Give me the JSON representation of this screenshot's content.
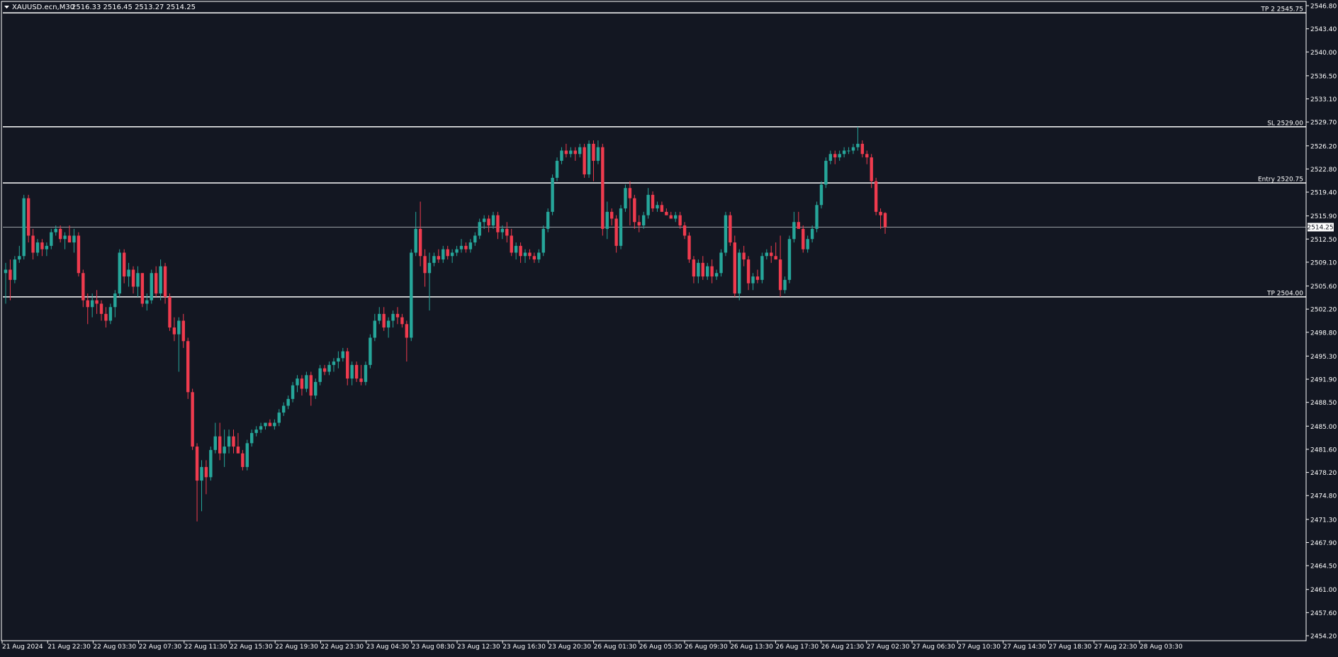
{
  "colors": {
    "background": "#131722",
    "frame": "#ffffff",
    "bull": "#26a69a",
    "bear": "#ef3b4e",
    "text": "#ffffff",
    "level_line": "#ffffff",
    "price_line": "#9aa0a6"
  },
  "header": {
    "symbol_tf": "XAUUSD.ecn,M30",
    "ohlc": "2516.33 2516.45 2513.27 2514.25"
  },
  "current_price_label": "2514.25",
  "chart_data": {
    "type": "candlestick",
    "yaxis": {
      "min": 2454.2,
      "max": 2546.8,
      "ticks": [
        "2546.80",
        "2543.40",
        "2540.00",
        "2536.50",
        "2533.10",
        "2529.70",
        "2526.20",
        "2522.80",
        "2519.40",
        "2515.90",
        "2512.50",
        "2509.10",
        "2505.60",
        "2502.20",
        "2498.80",
        "2495.30",
        "2491.90",
        "2488.50",
        "2485.00",
        "2481.60",
        "2478.20",
        "2474.80",
        "2471.30",
        "2467.90",
        "2464.50",
        "2461.00",
        "2457.60",
        "2454.20"
      ]
    },
    "xaxis": {
      "ticks": [
        "21 Aug 2024",
        "21 Aug 22:30",
        "22 Aug 03:30",
        "22 Aug 07:30",
        "22 Aug 11:30",
        "22 Aug 15:30",
        "22 Aug 19:30",
        "22 Aug 23:30",
        "23 Aug 04:30",
        "23 Aug 08:30",
        "23 Aug 12:30",
        "23 Aug 16:30",
        "23 Aug 20:30",
        "26 Aug 01:30",
        "26 Aug 05:30",
        "26 Aug 09:30",
        "26 Aug 13:30",
        "26 Aug 17:30",
        "26 Aug 21:30",
        "27 Aug 02:30",
        "27 Aug 06:30",
        "27 Aug 10:30",
        "27 Aug 14:30",
        "27 Aug 18:30",
        "27 Aug 22:30",
        "28 Aug 03:30"
      ]
    },
    "levels": [
      {
        "label": "TP 2 2545.75",
        "price": 2545.75
      },
      {
        "label": "SL 2529.00",
        "price": 2529.0
      },
      {
        "label": "Entry 2520.75",
        "price": 2520.75
      },
      {
        "label": "TP 2504.00",
        "price": 2504.0
      }
    ],
    "current_price": 2514.25,
    "candles": [
      [
        2507.5,
        2509.0,
        2503.0,
        2508.0
      ],
      [
        2508.0,
        2509.5,
        2503.5,
        2506.5
      ],
      [
        2506.5,
        2510.0,
        2506.0,
        2509.5
      ],
      [
        2509.5,
        2511.5,
        2509.0,
        2510.0
      ],
      [
        2510.0,
        2519.0,
        2509.5,
        2518.5
      ],
      [
        2518.5,
        2519.0,
        2512.0,
        2513.0
      ],
      [
        2513.0,
        2514.0,
        2509.5,
        2510.5
      ],
      [
        2510.5,
        2512.5,
        2510.0,
        2512.0
      ],
      [
        2512.0,
        2512.5,
        2510.0,
        2511.0
      ],
      [
        2511.0,
        2512.0,
        2510.0,
        2511.5
      ],
      [
        2511.5,
        2514.0,
        2511.0,
        2513.5
      ],
      [
        2513.5,
        2514.5,
        2513.0,
        2514.0
      ],
      [
        2514.0,
        2514.5,
        2512.0,
        2512.5
      ],
      [
        2512.5,
        2513.5,
        2511.0,
        2513.0
      ],
      [
        2513.0,
        2514.5,
        2512.5,
        2512.0
      ],
      [
        2512.0,
        2514.0,
        2510.5,
        2513.0
      ],
      [
        2513.0,
        2513.5,
        2507.0,
        2507.5
      ],
      [
        2507.5,
        2508.0,
        2502.5,
        2503.5
      ],
      [
        2503.5,
        2504.5,
        2500.0,
        2502.5
      ],
      [
        2502.5,
        2504.5,
        2501.0,
        2503.5
      ],
      [
        2503.5,
        2505.0,
        2501.5,
        2503.0
      ],
      [
        2503.0,
        2503.5,
        2500.5,
        2501.5
      ],
      [
        2501.5,
        2502.5,
        2499.5,
        2500.5
      ],
      [
        2500.5,
        2503.0,
        2500.0,
        2502.5
      ],
      [
        2502.5,
        2505.0,
        2501.0,
        2504.5
      ],
      [
        2504.5,
        2511.0,
        2504.0,
        2510.5
      ],
      [
        2510.5,
        2511.0,
        2506.0,
        2507.0
      ],
      [
        2507.0,
        2509.0,
        2505.5,
        2508.0
      ],
      [
        2508.0,
        2508.5,
        2504.5,
        2505.5
      ],
      [
        2505.5,
        2508.5,
        2504.0,
        2507.5
      ],
      [
        2507.5,
        2507.5,
        2502.5,
        2503.0
      ],
      [
        2503.0,
        2504.5,
        2502.0,
        2503.5
      ],
      [
        2503.5,
        2508.0,
        2503.0,
        2507.5
      ],
      [
        2507.5,
        2508.5,
        2504.0,
        2504.5
      ],
      [
        2504.5,
        2509.5,
        2503.5,
        2508.5
      ],
      [
        2508.5,
        2509.0,
        2503.0,
        2504.0
      ],
      [
        2504.0,
        2504.5,
        2499.0,
        2499.5
      ],
      [
        2499.5,
        2501.0,
        2497.5,
        2498.5
      ],
      [
        2498.5,
        2501.0,
        2493.0,
        2500.5
      ],
      [
        2500.5,
        2501.5,
        2496.5,
        2497.5
      ],
      [
        2497.5,
        2498.0,
        2489.0,
        2490.0
      ],
      [
        2490.0,
        2490.5,
        2481.5,
        2482.0
      ],
      [
        2482.0,
        2482.5,
        2471.0,
        2477.0
      ],
      [
        2477.0,
        2480.0,
        2472.5,
        2479.0
      ],
      [
        2479.0,
        2480.0,
        2475.0,
        2477.5
      ],
      [
        2477.5,
        2482.0,
        2477.0,
        2481.5
      ],
      [
        2481.5,
        2485.5,
        2481.0,
        2483.5
      ],
      [
        2483.5,
        2485.5,
        2480.0,
        2481.0
      ],
      [
        2481.0,
        2484.5,
        2479.0,
        2482.0
      ],
      [
        2482.0,
        2484.5,
        2481.0,
        2483.5
      ],
      [
        2483.5,
        2484.5,
        2481.0,
        2482.0
      ],
      [
        2482.0,
        2484.0,
        2481.5,
        2481.0
      ],
      [
        2481.0,
        2481.5,
        2478.5,
        2479.0
      ],
      [
        2479.0,
        2483.0,
        2478.5,
        2482.5
      ],
      [
        2482.5,
        2484.5,
        2482.0,
        2484.0
      ],
      [
        2484.0,
        2485.0,
        2483.5,
        2484.5
      ],
      [
        2484.5,
        2485.5,
        2484.0,
        2485.0
      ],
      [
        2485.0,
        2485.5,
        2484.5,
        2485.5
      ],
      [
        2485.5,
        2486.0,
        2485.0,
        2485.0
      ],
      [
        2485.0,
        2486.0,
        2484.5,
        2485.5
      ],
      [
        2485.5,
        2487.5,
        2485.0,
        2487.0
      ],
      [
        2487.0,
        2488.5,
        2486.5,
        2488.0
      ],
      [
        2488.0,
        2489.5,
        2487.5,
        2489.0
      ],
      [
        2489.0,
        2491.5,
        2488.5,
        2491.0
      ],
      [
        2491.0,
        2492.5,
        2490.0,
        2492.0
      ],
      [
        2492.0,
        2492.5,
        2489.5,
        2490.5
      ],
      [
        2490.5,
        2493.0,
        2490.0,
        2492.5
      ],
      [
        2492.5,
        2493.0,
        2488.0,
        2489.5
      ],
      [
        2489.5,
        2492.0,
        2489.0,
        2491.5
      ],
      [
        2491.5,
        2494.0,
        2491.0,
        2493.5
      ],
      [
        2493.5,
        2494.0,
        2492.5,
        2493.0
      ],
      [
        2493.0,
        2494.5,
        2492.5,
        2494.0
      ],
      [
        2494.0,
        2495.0,
        2493.0,
        2494.5
      ],
      [
        2494.5,
        2496.0,
        2493.5,
        2495.0
      ],
      [
        2495.0,
        2496.5,
        2494.5,
        2496.0
      ],
      [
        2496.0,
        2496.5,
        2491.0,
        2492.0
      ],
      [
        2492.0,
        2494.5,
        2491.0,
        2494.0
      ],
      [
        2494.0,
        2494.5,
        2491.5,
        2492.0
      ],
      [
        2492.0,
        2494.0,
        2491.0,
        2491.5
      ],
      [
        2491.5,
        2494.5,
        2491.0,
        2494.0
      ],
      [
        2494.0,
        2498.5,
        2493.5,
        2498.0
      ],
      [
        2498.0,
        2501.5,
        2497.5,
        2500.5
      ],
      [
        2500.5,
        2502.5,
        2500.0,
        2501.5
      ],
      [
        2501.5,
        2502.5,
        2499.0,
        2499.5
      ],
      [
        2499.5,
        2501.0,
        2498.0,
        2500.5
      ],
      [
        2500.5,
        2502.0,
        2499.5,
        2501.5
      ],
      [
        2501.5,
        2502.5,
        2500.0,
        2501.0
      ],
      [
        2501.0,
        2501.5,
        2499.5,
        2500.0
      ],
      [
        2500.0,
        2500.5,
        2494.5,
        2498.0
      ],
      [
        2498.0,
        2511.0,
        2497.5,
        2510.5
      ],
      [
        2510.5,
        2516.5,
        2510.0,
        2514.0
      ],
      [
        2514.0,
        2518.0,
        2508.5,
        2510.0
      ],
      [
        2510.0,
        2511.0,
        2505.5,
        2507.5
      ],
      [
        2507.5,
        2510.5,
        2502.0,
        2509.0
      ],
      [
        2509.0,
        2510.5,
        2508.5,
        2510.0
      ],
      [
        2510.0,
        2511.0,
        2509.0,
        2509.5
      ],
      [
        2509.5,
        2511.5,
        2509.0,
        2511.0
      ],
      [
        2511.0,
        2511.5,
        2509.5,
        2510.0
      ],
      [
        2510.0,
        2511.0,
        2509.0,
        2510.5
      ],
      [
        2510.5,
        2511.5,
        2510.0,
        2511.0
      ],
      [
        2511.0,
        2512.5,
        2510.5,
        2511.5
      ],
      [
        2511.5,
        2512.0,
        2510.5,
        2511.0
      ],
      [
        2511.0,
        2512.5,
        2510.5,
        2512.0
      ],
      [
        2512.0,
        2513.5,
        2511.5,
        2513.0
      ],
      [
        2513.0,
        2515.5,
        2512.5,
        2515.0
      ],
      [
        2515.0,
        2516.0,
        2514.0,
        2515.5
      ],
      [
        2515.5,
        2516.0,
        2513.5,
        2514.5
      ],
      [
        2514.5,
        2516.5,
        2514.0,
        2516.0
      ],
      [
        2516.0,
        2516.5,
        2512.5,
        2513.5
      ],
      [
        2513.5,
        2514.5,
        2512.5,
        2514.0
      ],
      [
        2514.0,
        2515.0,
        2512.0,
        2513.0
      ],
      [
        2513.0,
        2514.0,
        2510.0,
        2510.5
      ],
      [
        2510.5,
        2512.0,
        2509.5,
        2511.5
      ],
      [
        2511.5,
        2512.0,
        2509.0,
        2510.0
      ],
      [
        2510.0,
        2511.0,
        2509.0,
        2510.5
      ],
      [
        2510.5,
        2511.0,
        2509.5,
        2510.0
      ],
      [
        2510.0,
        2510.5,
        2509.0,
        2509.5
      ],
      [
        2509.5,
        2511.0,
        2509.0,
        2510.5
      ],
      [
        2510.5,
        2514.5,
        2510.0,
        2514.0
      ],
      [
        2514.0,
        2517.0,
        2513.5,
        2516.5
      ],
      [
        2516.5,
        2522.0,
        2516.0,
        2521.5
      ],
      [
        2521.5,
        2524.5,
        2521.0,
        2524.0
      ],
      [
        2524.0,
        2526.0,
        2523.5,
        2525.5
      ],
      [
        2525.5,
        2526.5,
        2524.5,
        2525.0
      ],
      [
        2525.0,
        2526.0,
        2524.5,
        2525.5
      ],
      [
        2525.5,
        2526.0,
        2524.0,
        2525.0
      ],
      [
        2525.0,
        2526.5,
        2524.5,
        2526.0
      ],
      [
        2526.0,
        2526.5,
        2521.5,
        2522.0
      ],
      [
        2522.0,
        2527.0,
        2521.5,
        2526.5
      ],
      [
        2526.5,
        2527.0,
        2521.0,
        2524.0
      ],
      [
        2524.0,
        2527.0,
        2523.5,
        2526.0
      ],
      [
        2526.0,
        2526.5,
        2513.0,
        2514.0
      ],
      [
        2514.0,
        2518.0,
        2512.5,
        2516.5
      ],
      [
        2516.5,
        2517.0,
        2514.5,
        2515.5
      ],
      [
        2515.5,
        2516.0,
        2510.5,
        2511.5
      ],
      [
        2511.5,
        2517.5,
        2511.0,
        2517.0
      ],
      [
        2517.0,
        2520.5,
        2516.5,
        2520.0
      ],
      [
        2520.0,
        2521.0,
        2514.5,
        2518.5
      ],
      [
        2518.5,
        2519.0,
        2514.0,
        2515.0
      ],
      [
        2515.0,
        2516.0,
        2513.5,
        2514.5
      ],
      [
        2514.5,
        2516.5,
        2514.0,
        2516.0
      ],
      [
        2516.0,
        2520.0,
        2515.5,
        2519.0
      ],
      [
        2519.0,
        2519.5,
        2516.5,
        2517.0
      ],
      [
        2517.0,
        2518.0,
        2516.5,
        2517.5
      ],
      [
        2517.5,
        2518.0,
        2516.5,
        2516.5
      ],
      [
        2516.5,
        2517.0,
        2516.0,
        2516.0
      ],
      [
        2516.0,
        2516.5,
        2515.5,
        2515.5
      ],
      [
        2515.5,
        2516.5,
        2515.0,
        2516.0
      ],
      [
        2516.0,
        2516.5,
        2514.0,
        2514.5
      ],
      [
        2514.5,
        2515.0,
        2512.5,
        2513.0
      ],
      [
        2513.0,
        2513.5,
        2509.0,
        2509.5
      ],
      [
        2509.5,
        2510.0,
        2506.0,
        2507.0
      ],
      [
        2507.0,
        2509.5,
        2506.0,
        2509.0
      ],
      [
        2509.0,
        2510.0,
        2506.5,
        2507.0
      ],
      [
        2507.0,
        2509.0,
        2506.5,
        2508.5
      ],
      [
        2508.5,
        2509.5,
        2506.0,
        2507.0
      ],
      [
        2507.0,
        2508.0,
        2506.5,
        2507.5
      ],
      [
        2507.5,
        2511.0,
        2507.0,
        2510.5
      ],
      [
        2510.5,
        2516.5,
        2510.0,
        2516.0
      ],
      [
        2516.0,
        2516.5,
        2511.5,
        2512.0
      ],
      [
        2512.0,
        2513.0,
        2504.0,
        2504.5
      ],
      [
        2504.5,
        2511.0,
        2503.5,
        2510.5
      ],
      [
        2510.5,
        2511.5,
        2508.5,
        2509.5
      ],
      [
        2509.5,
        2510.0,
        2505.0,
        2506.0
      ],
      [
        2506.0,
        2507.5,
        2505.0,
        2507.0
      ],
      [
        2507.0,
        2508.0,
        2506.0,
        2506.5
      ],
      [
        2506.5,
        2510.5,
        2506.0,
        2510.0
      ],
      [
        2510.0,
        2511.0,
        2509.5,
        2510.5
      ],
      [
        2510.5,
        2511.5,
        2509.0,
        2510.0
      ],
      [
        2510.0,
        2512.0,
        2509.5,
        2509.5
      ],
      [
        2509.5,
        2513.0,
        2504.0,
        2505.0
      ],
      [
        2505.0,
        2507.0,
        2504.5,
        2506.5
      ],
      [
        2506.5,
        2513.0,
        2506.0,
        2512.5
      ],
      [
        2512.5,
        2516.5,
        2512.0,
        2515.0
      ],
      [
        2515.0,
        2516.5,
        2514.5,
        2514.0
      ],
      [
        2514.0,
        2514.5,
        2510.5,
        2511.0
      ],
      [
        2511.0,
        2513.0,
        2510.5,
        2512.5
      ],
      [
        2512.5,
        2514.5,
        2512.0,
        2514.0
      ],
      [
        2514.0,
        2518.0,
        2513.5,
        2517.5
      ],
      [
        2517.5,
        2521.0,
        2517.0,
        2520.5
      ],
      [
        2520.5,
        2524.5,
        2520.0,
        2524.0
      ],
      [
        2524.0,
        2525.5,
        2523.5,
        2525.0
      ],
      [
        2525.0,
        2525.5,
        2523.5,
        2524.5
      ],
      [
        2524.5,
        2525.5,
        2524.0,
        2525.0
      ],
      [
        2525.0,
        2526.0,
        2524.5,
        2525.5
      ],
      [
        2525.5,
        2526.0,
        2525.0,
        2525.5
      ],
      [
        2525.5,
        2526.5,
        2525.0,
        2526.0
      ],
      [
        2526.0,
        2529.0,
        2525.5,
        2526.5
      ],
      [
        2526.5,
        2527.0,
        2524.5,
        2525.0
      ],
      [
        2525.0,
        2525.5,
        2523.5,
        2524.5
      ],
      [
        2524.5,
        2525.0,
        2520.0,
        2521.0
      ],
      [
        2521.0,
        2521.5,
        2516.0,
        2516.5
      ],
      [
        2516.5,
        2517.0,
        2514.0,
        2516.0
      ],
      [
        2516.33,
        2516.45,
        2513.27,
        2514.25
      ]
    ]
  }
}
